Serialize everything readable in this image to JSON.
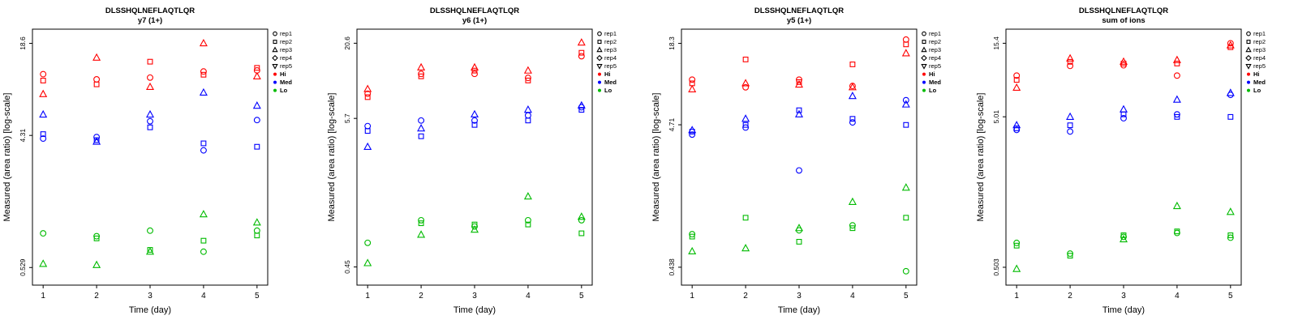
{
  "page": {
    "background": "#ffffff"
  },
  "chart_data": [
    {
      "type": "scatter",
      "title": "DLSSHQLNEFLAQTLQR",
      "subtitle": "y7 (1+)",
      "xlabel": "Time (day)",
      "ylabel": "Measured (area ratio) [log-scale]",
      "x_ticks": [
        1,
        2,
        3,
        4,
        5
      ],
      "y_ticks": [
        {
          "label": "0.529",
          "value": 0.529
        },
        {
          "label": "4.31",
          "value": 4.31
        },
        {
          "label": "18.6",
          "value": 18.6
        }
      ],
      "ylim": [
        0.4,
        23.3
      ],
      "log": true,
      "legend": {
        "reps": [
          "rep1",
          "rep2",
          "rep3",
          "rep4",
          "rep5"
        ],
        "levels": [
          {
            "label": "Hi",
            "color": "#FF0000"
          },
          {
            "label": "Med",
            "color": "#0000FF"
          },
          {
            "label": "Lo",
            "color": "#00BB00"
          }
        ]
      },
      "series": [
        {
          "name": "Hi",
          "color": "#FF0000",
          "points": [
            [
              1,
              1,
              11.4
            ],
            [
              1,
              2,
              10.3
            ],
            [
              1,
              3,
              8.3
            ],
            [
              2,
              3,
              14.8
            ],
            [
              2,
              1,
              10.5
            ],
            [
              2,
              2,
              9.7
            ],
            [
              3,
              2,
              13.9
            ],
            [
              3,
              1,
              10.8
            ],
            [
              3,
              3,
              9.3
            ],
            [
              4,
              3,
              18.6
            ],
            [
              4,
              1,
              11.9
            ],
            [
              4,
              2,
              11.3
            ],
            [
              5,
              2,
              12.6
            ],
            [
              5,
              1,
              12.1
            ],
            [
              5,
              3,
              11.0
            ]
          ]
        },
        {
          "name": "Med",
          "color": "#0000FF",
          "points": [
            [
              1,
              3,
              6.0
            ],
            [
              1,
              2,
              4.4
            ],
            [
              1,
              1,
              4.1
            ],
            [
              2,
              1,
              4.2
            ],
            [
              2,
              2,
              4.0
            ],
            [
              2,
              3,
              3.9
            ],
            [
              3,
              3,
              6.0
            ],
            [
              3,
              1,
              5.4
            ],
            [
              3,
              2,
              4.9
            ],
            [
              4,
              3,
              8.5
            ],
            [
              4,
              2,
              3.8
            ],
            [
              4,
              1,
              3.4
            ],
            [
              5,
              3,
              6.9
            ],
            [
              5,
              1,
              5.5
            ],
            [
              5,
              2,
              3.6
            ]
          ]
        },
        {
          "name": "Lo",
          "color": "#00BB00",
          "points": [
            [
              1,
              1,
              0.91
            ],
            [
              1,
              3,
              0.56
            ],
            [
              2,
              1,
              0.87
            ],
            [
              2,
              2,
              0.84
            ],
            [
              2,
              3,
              0.55
            ],
            [
              3,
              1,
              0.95
            ],
            [
              3,
              2,
              0.7
            ],
            [
              3,
              3,
              0.68
            ],
            [
              4,
              3,
              1.23
            ],
            [
              4,
              2,
              0.81
            ],
            [
              4,
              1,
              0.68
            ],
            [
              5,
              3,
              1.08
            ],
            [
              5,
              1,
              0.95
            ],
            [
              5,
              2,
              0.88
            ]
          ]
        }
      ]
    },
    {
      "type": "scatter",
      "title": "DLSSHQLNEFLAQTLQR",
      "subtitle": "y6 (1+)",
      "xlabel": "Time (day)",
      "ylabel": "Measured (area ratio) [log-scale]",
      "x_ticks": [
        1,
        2,
        3,
        4,
        5
      ],
      "y_ticks": [
        {
          "label": "0.45",
          "value": 0.45
        },
        {
          "label": "5.7",
          "value": 5.7
        },
        {
          "label": "20.6",
          "value": 20.6
        }
      ],
      "ylim": [
        0.33,
        26.2
      ],
      "log": true,
      "legend": {
        "reps": [
          "rep1",
          "rep2",
          "rep3",
          "rep4",
          "rep5"
        ],
        "levels": [
          {
            "label": "Hi",
            "color": "#FF0000"
          },
          {
            "label": "Med",
            "color": "#0000FF"
          },
          {
            "label": "Lo",
            "color": "#00BB00"
          }
        ]
      },
      "series": [
        {
          "name": "Hi",
          "color": "#FF0000",
          "points": [
            [
              1,
              3,
              9.4
            ],
            [
              1,
              1,
              8.7
            ],
            [
              1,
              2,
              8.2
            ],
            [
              2,
              3,
              13.6
            ],
            [
              2,
              1,
              12.2
            ],
            [
              2,
              2,
              11.7
            ],
            [
              3,
              3,
              13.6
            ],
            [
              3,
              2,
              12.9
            ],
            [
              3,
              1,
              12.2
            ],
            [
              4,
              3,
              12.9
            ],
            [
              4,
              1,
              11.4
            ],
            [
              4,
              2,
              10.9
            ],
            [
              5,
              3,
              20.8
            ],
            [
              5,
              2,
              17.5
            ],
            [
              5,
              1,
              16.5
            ]
          ]
        },
        {
          "name": "Med",
          "color": "#0000FF",
          "points": [
            [
              1,
              1,
              5.0
            ],
            [
              1,
              2,
              4.6
            ],
            [
              1,
              3,
              3.5
            ],
            [
              2,
              1,
              5.5
            ],
            [
              2,
              3,
              4.8
            ],
            [
              2,
              2,
              4.2
            ],
            [
              3,
              3,
              6.1
            ],
            [
              3,
              1,
              5.5
            ],
            [
              3,
              2,
              5.1
            ],
            [
              4,
              3,
              6.6
            ],
            [
              4,
              1,
              6.0
            ],
            [
              4,
              2,
              5.5
            ],
            [
              5,
              3,
              7.1
            ],
            [
              5,
              1,
              6.9
            ],
            [
              5,
              2,
              6.6
            ]
          ]
        },
        {
          "name": "Lo",
          "color": "#00BB00",
          "points": [
            [
              1,
              1,
              0.68
            ],
            [
              1,
              3,
              0.48
            ],
            [
              2,
              1,
              1.0
            ],
            [
              2,
              2,
              0.95
            ],
            [
              2,
              3,
              0.78
            ],
            [
              3,
              2,
              0.93
            ],
            [
              3,
              1,
              0.9
            ],
            [
              3,
              3,
              0.85
            ],
            [
              4,
              3,
              1.5
            ],
            [
              4,
              1,
              1.0
            ],
            [
              4,
              2,
              0.93
            ],
            [
              5,
              3,
              1.06
            ],
            [
              5,
              1,
              1.0
            ],
            [
              5,
              2,
              0.8
            ]
          ]
        }
      ]
    },
    {
      "type": "scatter",
      "title": "DLSSHQLNEFLAQTLQR",
      "subtitle": "y5 (1+)",
      "xlabel": "Time (day)",
      "ylabel": "Measured (area ratio) [log-scale]",
      "x_ticks": [
        1,
        2,
        3,
        4,
        5
      ],
      "y_ticks": [
        {
          "label": "0.438",
          "value": 0.438
        },
        {
          "label": "4.71",
          "value": 4.71
        },
        {
          "label": "18.3",
          "value": 18.3
        }
      ],
      "ylim": [
        0.325,
        23.2
      ],
      "log": true,
      "legend": {
        "reps": [
          "rep1",
          "rep2",
          "rep3",
          "rep4",
          "rep5"
        ],
        "levels": [
          {
            "label": "Hi",
            "color": "#FF0000"
          },
          {
            "label": "Med",
            "color": "#0000FF"
          },
          {
            "label": "Lo",
            "color": "#00BB00"
          }
        ]
      },
      "series": [
        {
          "name": "Hi",
          "color": "#FF0000",
          "points": [
            [
              1,
              1,
              10.0
            ],
            [
              1,
              2,
              9.4
            ],
            [
              1,
              3,
              8.5
            ],
            [
              2,
              2,
              14.0
            ],
            [
              2,
              3,
              9.4
            ],
            [
              2,
              1,
              8.8
            ],
            [
              3,
              1,
              10.0
            ],
            [
              3,
              2,
              9.6
            ],
            [
              3,
              3,
              9.2
            ],
            [
              4,
              2,
              12.9
            ],
            [
              4,
              1,
              9.0
            ],
            [
              4,
              3,
              8.8
            ],
            [
              5,
              1,
              19.5
            ],
            [
              5,
              2,
              18.0
            ],
            [
              5,
              3,
              15.5
            ]
          ]
        },
        {
          "name": "Med",
          "color": "#0000FF",
          "points": [
            [
              1,
              3,
              4.3
            ],
            [
              1,
              2,
              4.2
            ],
            [
              1,
              1,
              4.0
            ],
            [
              2,
              3,
              5.2
            ],
            [
              2,
              2,
              4.7
            ],
            [
              2,
              1,
              4.5
            ],
            [
              3,
              2,
              6.0
            ],
            [
              3,
              3,
              5.6
            ],
            [
              3,
              1,
              2.2
            ],
            [
              4,
              3,
              7.6
            ],
            [
              4,
              2,
              5.2
            ],
            [
              4,
              1,
              4.9
            ],
            [
              5,
              1,
              7.1
            ],
            [
              5,
              3,
              6.6
            ],
            [
              5,
              2,
              4.7
            ]
          ]
        },
        {
          "name": "Lo",
          "color": "#00BB00",
          "points": [
            [
              1,
              1,
              0.76
            ],
            [
              1,
              2,
              0.73
            ],
            [
              1,
              3,
              0.57
            ],
            [
              2,
              2,
              1.0
            ],
            [
              2,
              3,
              0.6
            ],
            [
              3,
              3,
              0.84
            ],
            [
              3,
              1,
              0.81
            ],
            [
              3,
              2,
              0.67
            ],
            [
              4,
              3,
              1.3
            ],
            [
              4,
              1,
              0.88
            ],
            [
              4,
              2,
              0.84
            ],
            [
              5,
              3,
              1.65
            ],
            [
              5,
              2,
              1.0
            ],
            [
              5,
              1,
              0.41
            ]
          ]
        }
      ]
    },
    {
      "type": "scatter",
      "title": "DLSSHQLNEFLAQTLQR",
      "subtitle": "sum of ions",
      "xlabel": "Time (day)",
      "ylabel": "Measured (area ratio) [log-scale]",
      "x_ticks": [
        1,
        2,
        3,
        4,
        5
      ],
      "y_ticks": [
        {
          "label": "0.503",
          "value": 0.503
        },
        {
          "label": "5.01",
          "value": 5.01
        },
        {
          "label": "15.4",
          "value": 15.4
        }
      ],
      "ylim": [
        0.383,
        19.1
      ],
      "log": true,
      "legend": {
        "reps": [
          "rep1",
          "rep2",
          "rep3",
          "rep4",
          "rep5"
        ],
        "levels": [
          {
            "label": "Hi",
            "color": "#FF0000"
          },
          {
            "label": "Med",
            "color": "#0000FF"
          },
          {
            "label": "Lo",
            "color": "#00BB00"
          }
        ]
      },
      "series": [
        {
          "name": "Hi",
          "color": "#FF0000",
          "points": [
            [
              1,
              1,
              9.4
            ],
            [
              1,
              2,
              8.8
            ],
            [
              1,
              3,
              7.8
            ],
            [
              2,
              3,
              12.2
            ],
            [
              2,
              2,
              11.6
            ],
            [
              2,
              1,
              10.9
            ],
            [
              3,
              3,
              11.6
            ],
            [
              3,
              2,
              11.3
            ],
            [
              3,
              1,
              11.0
            ],
            [
              4,
              3,
              11.9
            ],
            [
              4,
              2,
              11.3
            ],
            [
              4,
              1,
              9.4
            ],
            [
              5,
              1,
              15.4
            ],
            [
              5,
              3,
              14.9
            ],
            [
              5,
              2,
              14.5
            ]
          ]
        },
        {
          "name": "Med",
          "color": "#0000FF",
          "points": [
            [
              1,
              3,
              4.4
            ],
            [
              1,
              2,
              4.2
            ],
            [
              1,
              1,
              4.1
            ],
            [
              2,
              3,
              5.0
            ],
            [
              2,
              2,
              4.4
            ],
            [
              2,
              1,
              4.0
            ],
            [
              3,
              3,
              5.6
            ],
            [
              3,
              2,
              5.2
            ],
            [
              3,
              1,
              4.9
            ],
            [
              4,
              3,
              6.5
            ],
            [
              4,
              1,
              5.2
            ],
            [
              4,
              2,
              5.0
            ],
            [
              5,
              3,
              7.2
            ],
            [
              5,
              1,
              7.0
            ],
            [
              5,
              2,
              5.0
            ]
          ]
        },
        {
          "name": "Lo",
          "color": "#00BB00",
          "points": [
            [
              1,
              1,
              0.73
            ],
            [
              1,
              2,
              0.7
            ],
            [
              1,
              3,
              0.49
            ],
            [
              2,
              1,
              0.62
            ],
            [
              2,
              2,
              0.6
            ],
            [
              3,
              2,
              0.82
            ],
            [
              3,
              1,
              0.8
            ],
            [
              3,
              3,
              0.77
            ],
            [
              4,
              3,
              1.28
            ],
            [
              4,
              2,
              0.87
            ],
            [
              4,
              1,
              0.85
            ],
            [
              5,
              3,
              1.17
            ],
            [
              5,
              2,
              0.82
            ],
            [
              5,
              1,
              0.79
            ]
          ]
        }
      ]
    }
  ]
}
